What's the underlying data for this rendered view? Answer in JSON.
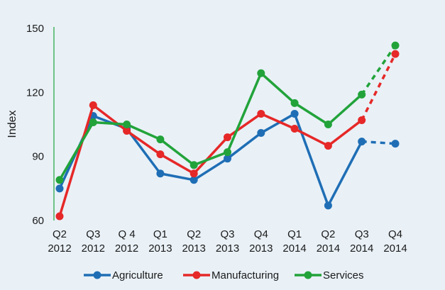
{
  "chart_data": {
    "type": "line",
    "title": "",
    "xlabel": "",
    "ylabel": "Index",
    "ylim": [
      60,
      150
    ],
    "yticks": [
      60,
      90,
      120,
      150
    ],
    "grid": false,
    "legend_position": "bottom",
    "categories": [
      [
        "Q2",
        "2012"
      ],
      [
        "Q3",
        "2012"
      ],
      [
        "Q 4",
        "2012"
      ],
      [
        "Q1",
        "2013"
      ],
      [
        "Q2",
        "2013"
      ],
      [
        "Q3",
        "2013"
      ],
      [
        "Q4",
        "2013"
      ],
      [
        "Q1",
        "2014"
      ],
      [
        "Q2",
        "2014"
      ],
      [
        "Q3",
        "2014"
      ],
      [
        "Q4",
        "2014"
      ]
    ],
    "projected_from_index": 9,
    "series": [
      {
        "name": "Agriculture",
        "color": "#1f6eb5",
        "values": [
          75,
          109,
          103,
          82,
          79,
          89,
          101,
          110,
          67,
          97,
          96
        ]
      },
      {
        "name": "Manufacturing",
        "color": "#e62828",
        "values": [
          62,
          114,
          102,
          91,
          82,
          99,
          110,
          103,
          95,
          107,
          138
        ]
      },
      {
        "name": "Services",
        "color": "#22a33a",
        "values": [
          79,
          106,
          105,
          98,
          86,
          92,
          129,
          115,
          105,
          119,
          142
        ]
      }
    ]
  }
}
